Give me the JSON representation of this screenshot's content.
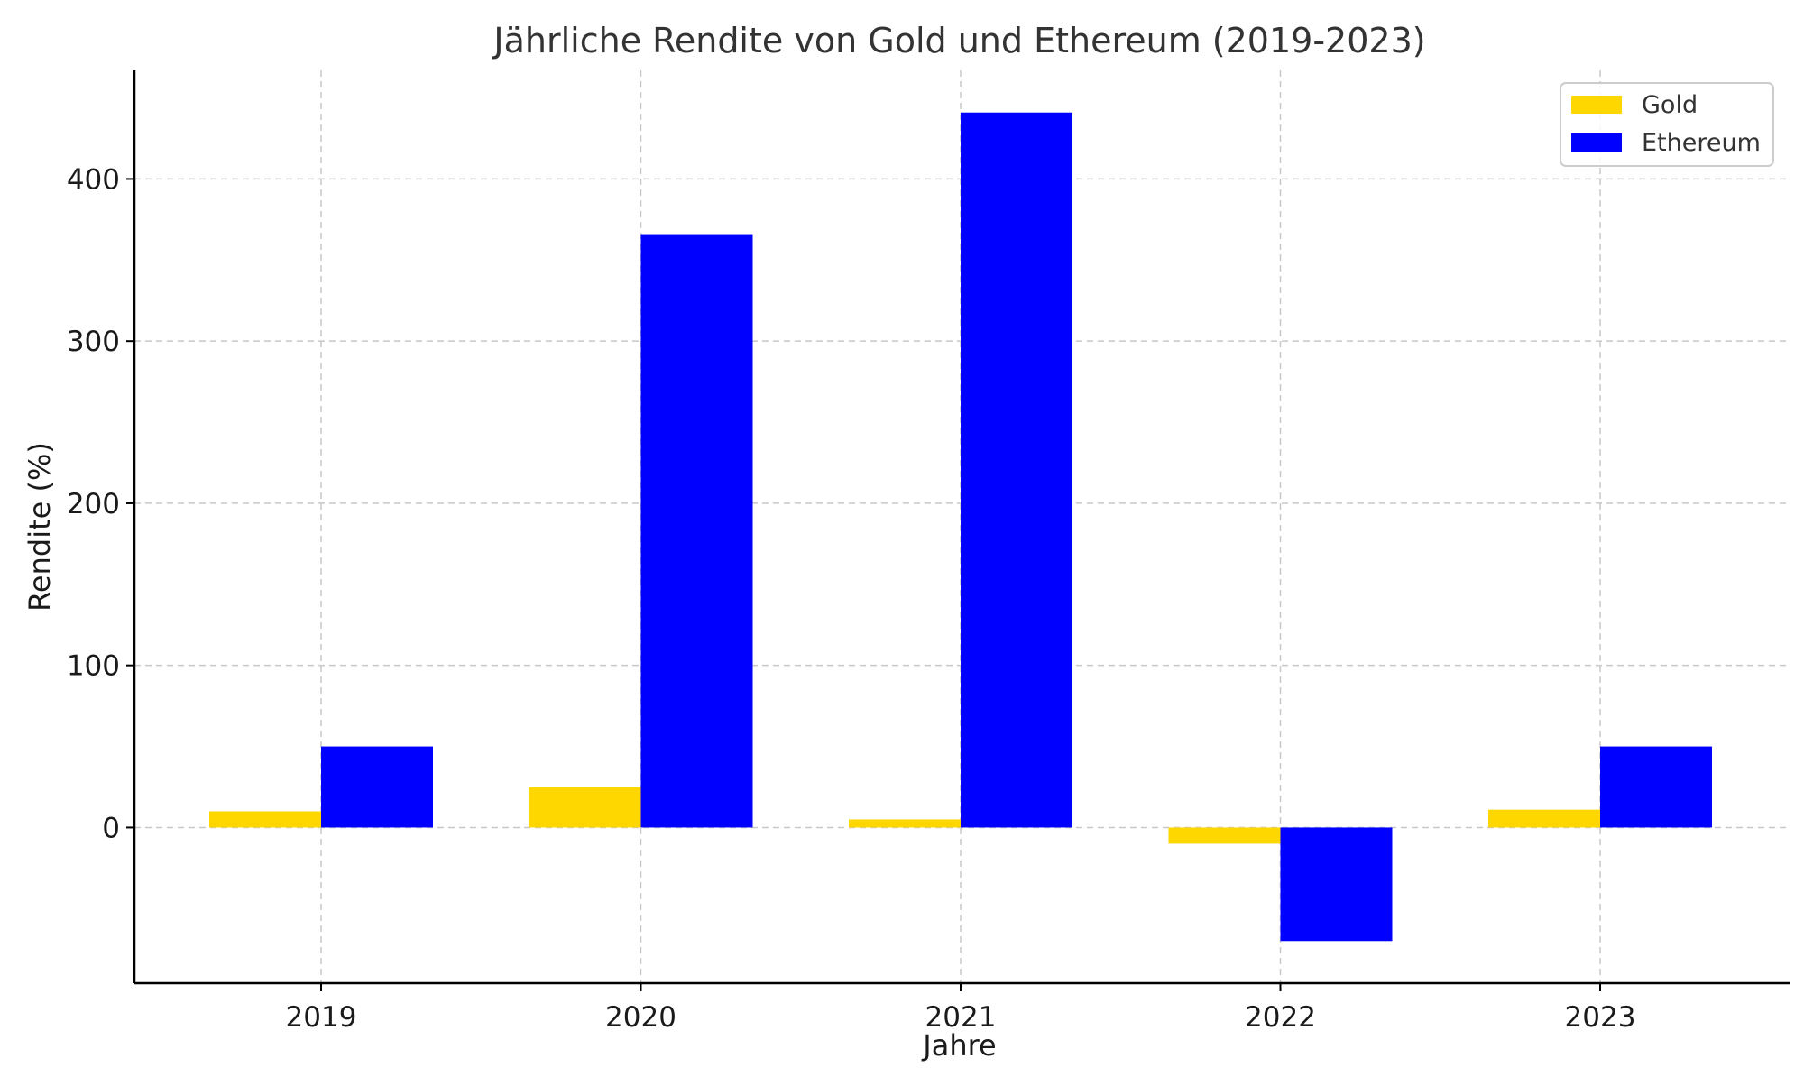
{
  "chart_data": {
    "type": "bar",
    "title": "Jährliche Rendite von Gold und Ethereum (2019-2023)",
    "xlabel": "Jahre",
    "ylabel": "Rendite (%)",
    "categories": [
      "2019",
      "2020",
      "2021",
      "2022",
      "2023"
    ],
    "series": [
      {
        "name": "Gold",
        "color": "#FFD700",
        "values": [
          10,
          25,
          5,
          -10,
          11
        ]
      },
      {
        "name": "Ethereum",
        "color": "#0000FF",
        "values": [
          50,
          366,
          441,
          -70,
          50
        ]
      }
    ],
    "ylim": [
      -96,
      467
    ],
    "yticks": [
      0,
      100,
      200,
      300,
      400
    ],
    "grid": true,
    "legend_position": "top-right"
  }
}
